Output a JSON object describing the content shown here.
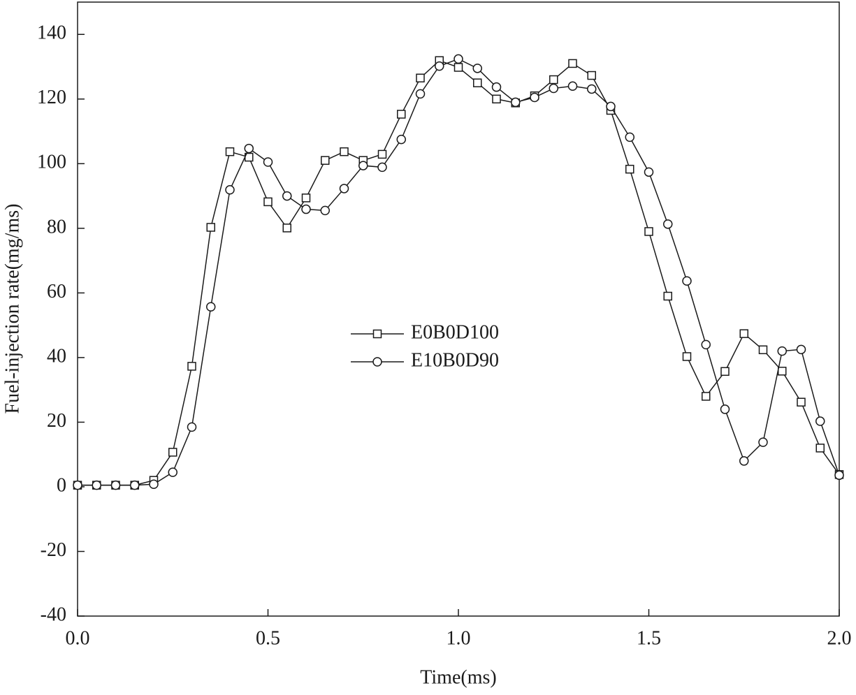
{
  "chart_data": {
    "type": "line",
    "xlabel": "Time(ms)",
    "ylabel": "Fuel-injection rate(mg/ms)",
    "x": [
      0,
      0.05,
      0.1,
      0.15,
      0.2,
      0.25,
      0.3,
      0.35,
      0.4,
      0.45,
      0.5,
      0.55,
      0.6,
      0.65,
      0.7,
      0.75,
      0.8,
      0.85,
      0.9,
      0.95,
      1.0,
      1.05,
      1.1,
      1.15,
      1.2,
      1.25,
      1.3,
      1.35,
      1.4,
      1.45,
      1.5,
      1.55,
      1.6,
      1.65,
      1.7,
      1.75,
      1.8,
      1.85,
      1.9,
      1.95,
      2.0
    ],
    "series": [
      {
        "name": "E0B0D100",
        "color": "#1a1a1a",
        "marker": "square",
        "values": [
          0.5,
          0.5,
          0.5,
          0.5,
          2,
          10.7,
          37.3,
          80.3,
          103.7,
          102,
          88.2,
          80.1,
          89.4,
          101,
          103.7,
          101,
          102.9,
          115.3,
          126.5,
          131.9,
          129.8,
          125,
          120,
          118.8,
          121,
          126,
          131,
          127.3,
          116.5,
          98.3,
          79,
          59,
          40.3,
          28,
          35.7,
          47.4,
          42.4,
          35.8,
          26.2,
          12,
          3.8
        ]
      },
      {
        "name": "E10B0D90",
        "color": "#1a1a1a",
        "marker": "circle",
        "values": [
          0.5,
          0.5,
          0.5,
          0.5,
          0.8,
          4.5,
          18.5,
          55.7,
          91.9,
          104.7,
          100.5,
          90,
          85.9,
          85.5,
          92.3,
          99.4,
          98.9,
          107.5,
          121.6,
          130.2,
          132.4,
          129.5,
          123.7,
          119,
          120.5,
          123.3,
          124,
          123.1,
          117.7,
          108.2,
          97.4,
          81.3,
          63.7,
          44,
          24,
          8,
          13.8,
          42,
          42.5,
          20.3,
          3.6
        ]
      }
    ],
    "xlim": [
      0,
      2.0
    ],
    "xticks": [
      {
        "value": 0,
        "label": "0.0"
      },
      0.5,
      {
        "value": 1,
        "label": "1.0"
      },
      1.5,
      {
        "value": 2,
        "label": "2.0"
      }
    ],
    "ylim": [
      -40,
      150
    ],
    "yticks": [
      -40,
      -20,
      0,
      20,
      40,
      60,
      80,
      100,
      120,
      140
    ],
    "grid": false
  }
}
